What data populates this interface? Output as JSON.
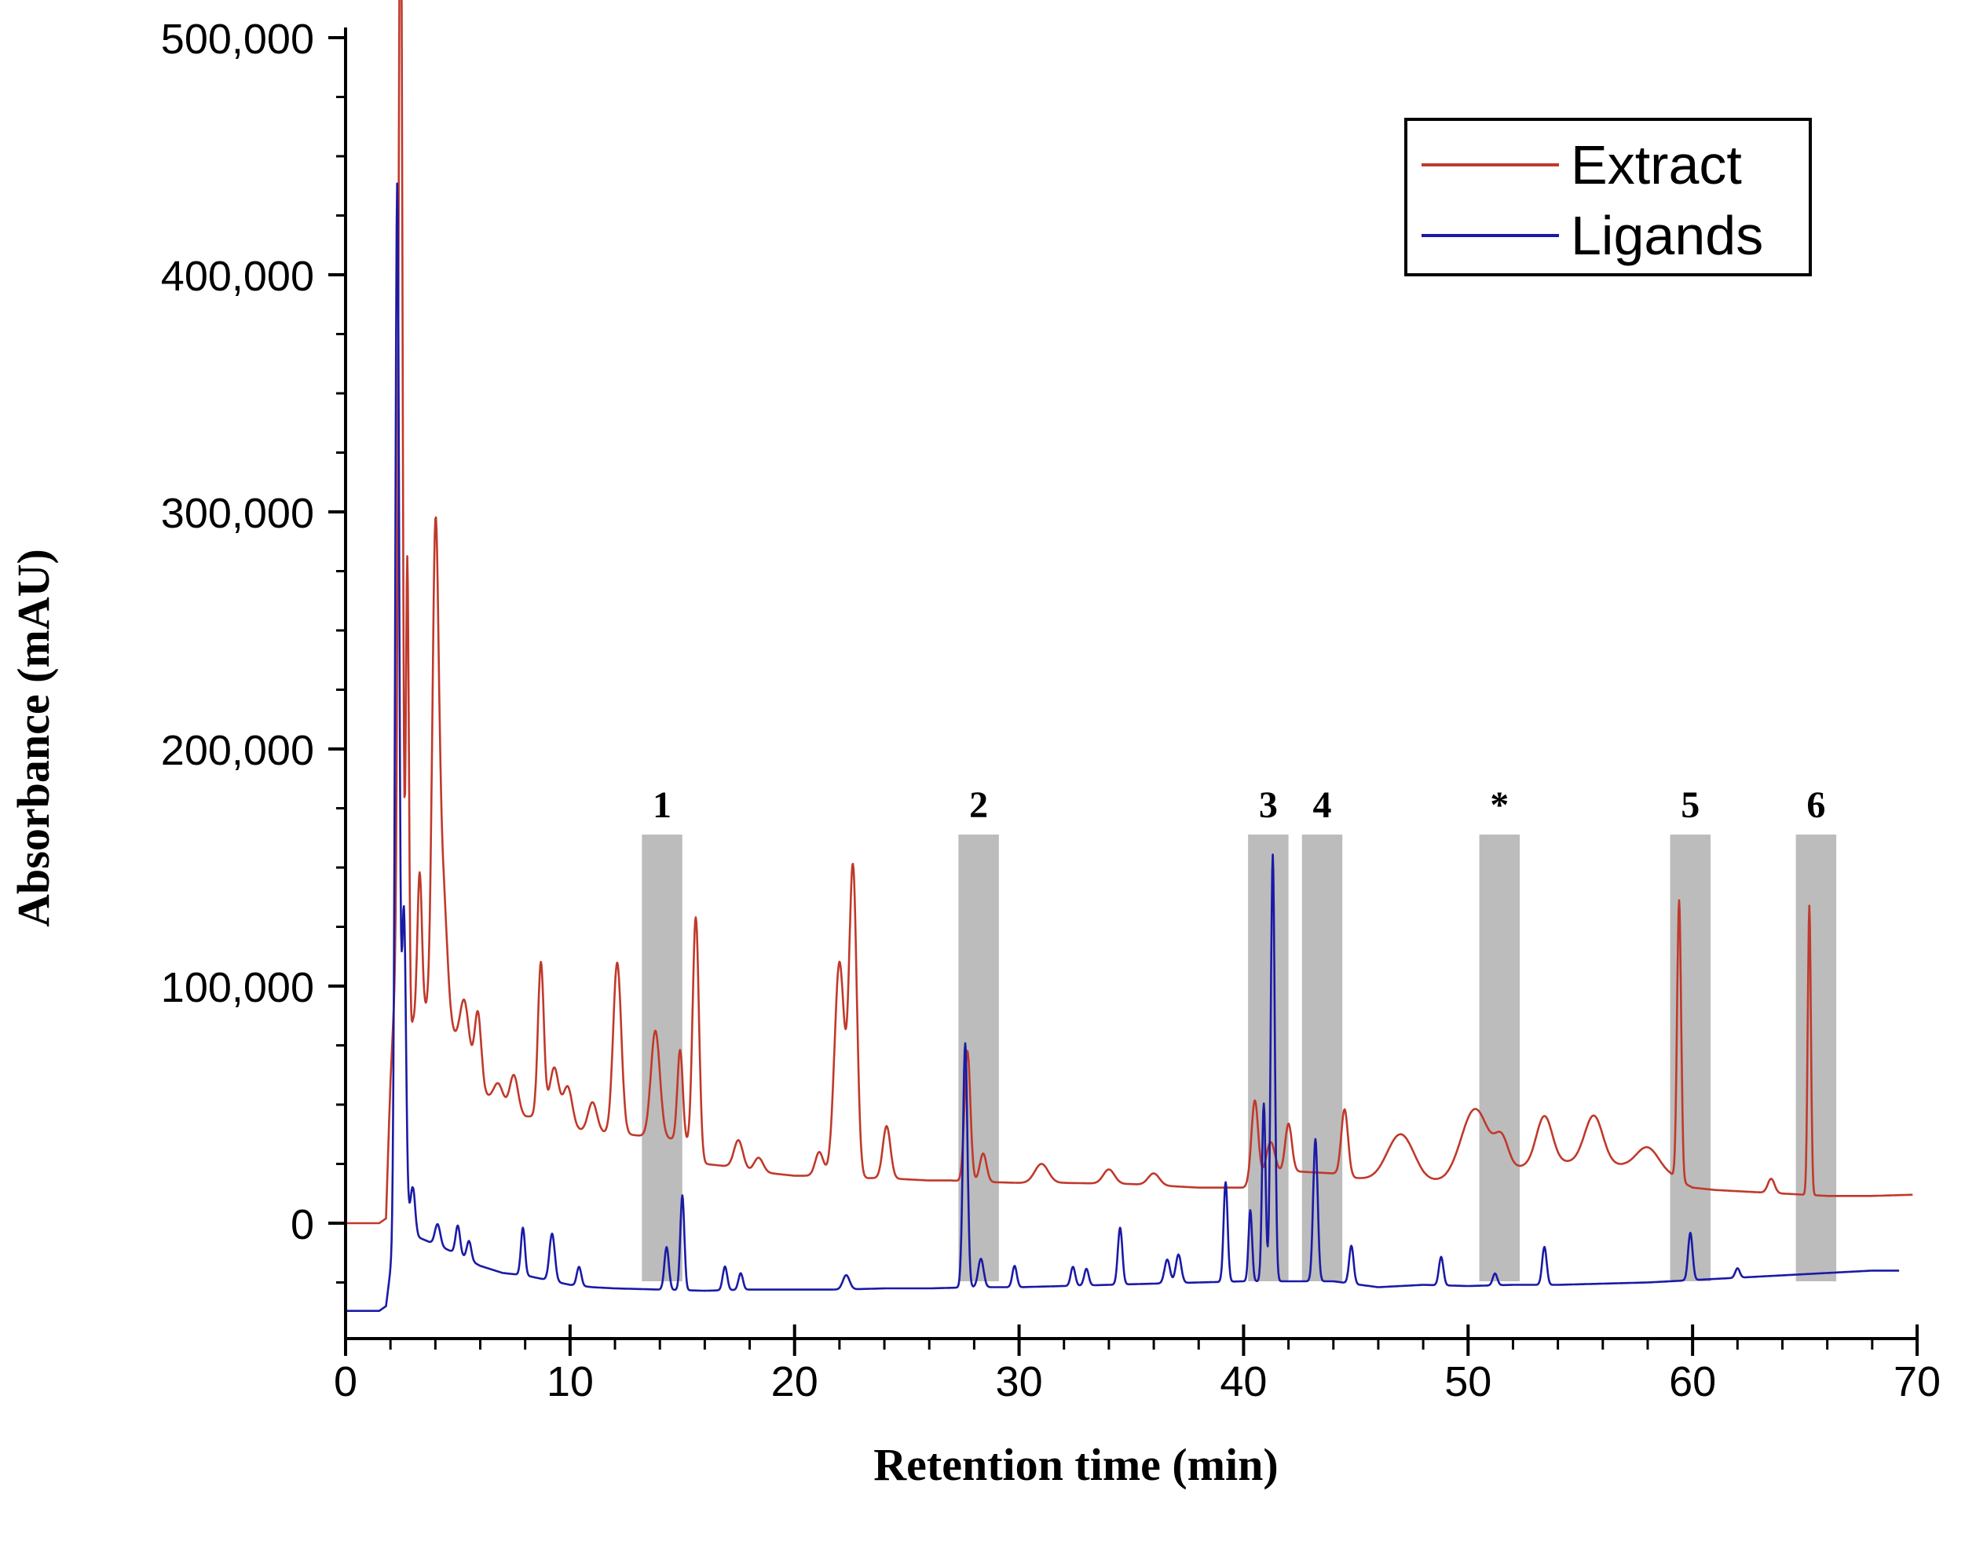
{
  "chart_data": {
    "type": "line",
    "title": "",
    "xlabel": "Retention time (min)",
    "ylabel": "Absorbance (mAU)",
    "xlim": [
      0,
      70
    ],
    "ylim": [
      -50000,
      500000
    ],
    "x_ticks": [
      0,
      10,
      20,
      30,
      40,
      50,
      60,
      70
    ],
    "x_tick_labels": [
      "0",
      "10",
      "20",
      "30",
      "40",
      "50",
      "60",
      "70"
    ],
    "y_ticks": [
      0,
      100000,
      200000,
      300000,
      400000,
      500000
    ],
    "y_tick_labels": [
      "0",
      "100,000",
      "200,000",
      "300,000",
      "400,000",
      "500,000"
    ],
    "legend": {
      "position": "top-right",
      "entries": [
        "Extract",
        "Ligands"
      ]
    },
    "colors": {
      "Extract": "#c0392b",
      "Ligands": "#1a1aa6",
      "band": "#b0b0b0"
    },
    "bands": [
      {
        "label": "1",
        "start": 13.2,
        "end": 15.0
      },
      {
        "label": "2",
        "start": 27.3,
        "end": 29.1
      },
      {
        "label": "3",
        "start": 40.2,
        "end": 42.0
      },
      {
        "label": "4",
        "start": 42.6,
        "end": 44.4
      },
      {
        "label": "*",
        "start": 50.5,
        "end": 52.3
      },
      {
        "label": "5",
        "start": 59.0,
        "end": 60.8
      },
      {
        "label": "6",
        "start": 64.6,
        "end": 66.4
      }
    ],
    "series": [
      {
        "name": "Extract",
        "baseline": [
          [
            0,
            0
          ],
          [
            1.5,
            0
          ],
          [
            1.8,
            2000
          ],
          [
            2.0,
            60000
          ],
          [
            2.3,
            120000
          ],
          [
            2.6,
            60000
          ],
          [
            3,
            85000
          ],
          [
            3.5,
            90000
          ],
          [
            4.5,
            85000
          ],
          [
            6,
            55000
          ],
          [
            7,
            50000
          ],
          [
            8,
            45000
          ],
          [
            9,
            45000
          ],
          [
            10,
            40000
          ],
          [
            11,
            38000
          ],
          [
            12,
            38000
          ],
          [
            13,
            37000
          ],
          [
            14,
            36000
          ],
          [
            15,
            35000
          ],
          [
            16,
            25000
          ],
          [
            17,
            24000
          ],
          [
            18,
            22000
          ],
          [
            19,
            21000
          ],
          [
            20,
            20000
          ],
          [
            21,
            20000
          ],
          [
            22,
            20000
          ],
          [
            23,
            19000
          ],
          [
            24,
            19000
          ],
          [
            25,
            18500
          ],
          [
            26,
            18000
          ],
          [
            27,
            18000
          ],
          [
            28,
            17500
          ],
          [
            30,
            17000
          ],
          [
            32,
            17000
          ],
          [
            35,
            16500
          ],
          [
            38,
            15000
          ],
          [
            40,
            15000
          ],
          [
            42,
            22000
          ],
          [
            44,
            21000
          ],
          [
            45,
            19000
          ],
          [
            46,
            18000
          ],
          [
            48,
            17000
          ],
          [
            49,
            18000
          ],
          [
            52,
            23000
          ],
          [
            53,
            25000
          ],
          [
            55,
            26000
          ],
          [
            57,
            24000
          ],
          [
            58,
            22000
          ],
          [
            59,
            20000
          ],
          [
            60,
            15000
          ],
          [
            61,
            14000
          ],
          [
            62,
            13500
          ],
          [
            63,
            13000
          ],
          [
            64,
            12500
          ],
          [
            65,
            12000
          ],
          [
            66,
            11500
          ],
          [
            68,
            11500
          ],
          [
            69.8,
            12000
          ]
        ],
        "peaks": [
          [
            2.45,
            500000,
            0.09
          ],
          [
            2.75,
            210000,
            0.07
          ],
          [
            3.3,
            60000,
            0.1
          ],
          [
            4.0,
            190000,
            0.14
          ],
          [
            4.3,
            60000,
            0.2
          ],
          [
            5.3,
            25000,
            0.2
          ],
          [
            5.9,
            32000,
            0.15
          ],
          [
            6.8,
            8000,
            0.2
          ],
          [
            7.5,
            15000,
            0.18
          ],
          [
            8.7,
            65000,
            0.13
          ],
          [
            9.3,
            22000,
            0.2
          ],
          [
            9.9,
            17000,
            0.2
          ],
          [
            11.0,
            13000,
            0.2
          ],
          [
            12.1,
            72000,
            0.18
          ],
          [
            13.8,
            45000,
            0.2
          ],
          [
            14.9,
            38000,
            0.12
          ],
          [
            15.6,
            100000,
            0.14
          ],
          [
            17.5,
            12000,
            0.2
          ],
          [
            18.4,
            6000,
            0.2
          ],
          [
            21.1,
            10000,
            0.18
          ],
          [
            22.0,
            90000,
            0.22
          ],
          [
            22.6,
            130000,
            0.17
          ],
          [
            24.1,
            22000,
            0.17
          ],
          [
            27.7,
            55000,
            0.13
          ],
          [
            28.4,
            12000,
            0.15
          ],
          [
            31.0,
            8000,
            0.3
          ],
          [
            34.0,
            6000,
            0.25
          ],
          [
            36.0,
            5000,
            0.25
          ],
          [
            40.5,
            35000,
            0.15
          ],
          [
            41.2,
            15000,
            0.2
          ],
          [
            42.0,
            20000,
            0.15
          ],
          [
            44.5,
            28000,
            0.15
          ],
          [
            47.0,
            20000,
            0.6
          ],
          [
            50.3,
            28000,
            0.6
          ],
          [
            51.5,
            12000,
            0.3
          ],
          [
            53.4,
            20000,
            0.35
          ],
          [
            55.6,
            20000,
            0.4
          ],
          [
            58.0,
            10000,
            0.5
          ],
          [
            59.4,
            118000,
            0.09
          ],
          [
            63.5,
            6000,
            0.15
          ],
          [
            65.2,
            122000,
            0.07
          ]
        ]
      },
      {
        "name": "Ligands",
        "baseline": [
          [
            0,
            -37000
          ],
          [
            1.5,
            -37000
          ],
          [
            1.8,
            -35000
          ],
          [
            2.0,
            -20000
          ],
          [
            2.5,
            10000
          ],
          [
            3,
            -5000
          ],
          [
            4,
            -9000
          ],
          [
            5,
            -13000
          ],
          [
            6,
            -18000
          ],
          [
            7,
            -21000
          ],
          [
            8,
            -22000
          ],
          [
            9,
            -24000
          ],
          [
            10,
            -26000
          ],
          [
            11,
            -27000
          ],
          [
            12,
            -27500
          ],
          [
            14,
            -28000
          ],
          [
            16,
            -28500
          ],
          [
            18,
            -28000
          ],
          [
            20,
            -28000
          ],
          [
            22,
            -28000
          ],
          [
            24,
            -27500
          ],
          [
            26,
            -27500
          ],
          [
            28,
            -27000
          ],
          [
            30,
            -27000
          ],
          [
            32,
            -26500
          ],
          [
            34,
            -26000
          ],
          [
            36,
            -25500
          ],
          [
            38,
            -25000
          ],
          [
            40,
            -24500
          ],
          [
            42,
            -24500
          ],
          [
            44,
            -24500
          ],
          [
            46,
            -27000
          ],
          [
            48,
            -26000
          ],
          [
            50,
            -26500
          ],
          [
            52,
            -26000
          ],
          [
            54,
            -26000
          ],
          [
            56,
            -25500
          ],
          [
            58,
            -25000
          ],
          [
            60,
            -24000
          ],
          [
            62,
            -23000
          ],
          [
            64,
            -22000
          ],
          [
            66,
            -21000
          ],
          [
            68,
            -20000
          ],
          [
            69.2,
            -20000
          ]
        ],
        "peaks": [
          [
            2.3,
            440000,
            0.09
          ],
          [
            2.6,
            125000,
            0.09
          ],
          [
            3.0,
            20000,
            0.1
          ],
          [
            4.1,
            9000,
            0.12
          ],
          [
            5.0,
            12000,
            0.1
          ],
          [
            5.5,
            8000,
            0.1
          ],
          [
            7.9,
            20000,
            0.09
          ],
          [
            9.2,
            20000,
            0.12
          ],
          [
            10.4,
            8000,
            0.1
          ],
          [
            14.3,
            18000,
            0.1
          ],
          [
            15.0,
            40000,
            0.09
          ],
          [
            16.9,
            10000,
            0.1
          ],
          [
            17.6,
            7000,
            0.1
          ],
          [
            22.3,
            6000,
            0.15
          ],
          [
            27.6,
            103000,
            0.1
          ],
          [
            28.3,
            12000,
            0.12
          ],
          [
            29.8,
            9000,
            0.1
          ],
          [
            32.4,
            8000,
            0.1
          ],
          [
            33.0,
            7000,
            0.1
          ],
          [
            34.5,
            24000,
            0.1
          ],
          [
            36.6,
            10000,
            0.12
          ],
          [
            37.1,
            12000,
            0.12
          ],
          [
            39.2,
            42000,
            0.09
          ],
          [
            40.3,
            30000,
            0.08
          ],
          [
            40.9,
            75000,
            0.08
          ],
          [
            41.3,
            180000,
            0.09
          ],
          [
            43.2,
            60000,
            0.1
          ],
          [
            44.8,
            16000,
            0.1
          ],
          [
            48.8,
            12000,
            0.1
          ],
          [
            51.2,
            5000,
            0.1
          ],
          [
            53.4,
            16000,
            0.1
          ],
          [
            59.9,
            20000,
            0.1
          ],
          [
            62.0,
            4000,
            0.1
          ]
        ]
      }
    ]
  }
}
